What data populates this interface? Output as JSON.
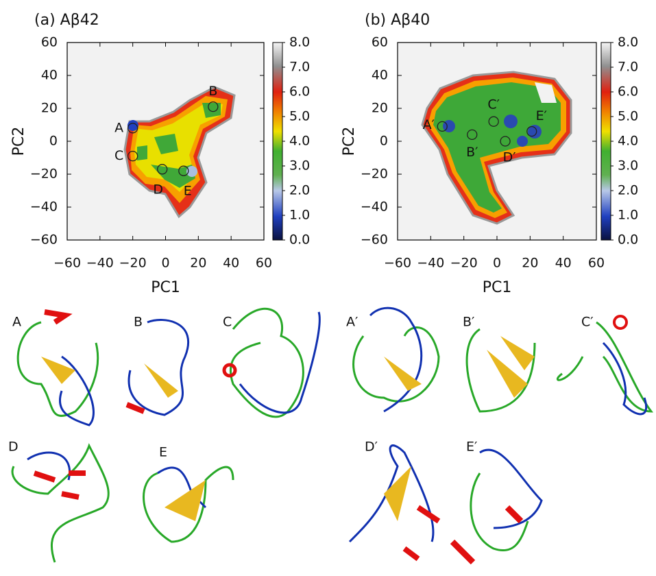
{
  "chart_data": [
    {
      "type": "heatmap",
      "title": "(a) Aβ42",
      "xlabel": "PC1",
      "ylabel": "PC2",
      "xlim": [
        -60,
        60
      ],
      "ylim": [
        -60,
        60
      ],
      "xticks": [
        {
          "value": -60,
          "label": "−60"
        },
        {
          "value": -40,
          "label": "−40"
        },
        {
          "value": -20,
          "label": "−20"
        },
        0,
        20,
        40,
        60
      ],
      "yticks": [
        {
          "value": -60,
          "label": "−60"
        },
        {
          "value": -40,
          "label": "−40"
        },
        {
          "value": -20,
          "label": "−20"
        },
        0,
        20,
        40,
        60
      ],
      "colorbar": {
        "lim": [
          0,
          8
        ],
        "ticks": [
          {
            "value": 0,
            "label": "0.0"
          },
          {
            "value": 1,
            "label": "1.0"
          },
          {
            "value": 2,
            "label": "2.0"
          },
          {
            "value": 3,
            "label": "3.0"
          },
          {
            "value": 4,
            "label": "4.0"
          },
          {
            "value": 5,
            "label": "5.0"
          },
          {
            "value": 6,
            "label": "6.0"
          },
          {
            "value": 7,
            "label": "7.0"
          },
          {
            "value": 8,
            "label": "8.0"
          }
        ]
      },
      "points": [
        {
          "label": "A",
          "x": -20,
          "y": 8
        },
        {
          "label": "B",
          "x": 29,
          "y": 21
        },
        {
          "label": "C",
          "x": -20,
          "y": -9
        },
        {
          "label": "D",
          "x": -2,
          "y": -17
        },
        {
          "label": "E",
          "x": 11,
          "y": -18
        }
      ]
    },
    {
      "type": "heatmap",
      "title": "(b) Aβ40",
      "xlabel": "PC1",
      "ylabel": "PC2",
      "xlim": [
        -60,
        60
      ],
      "ylim": [
        -60,
        60
      ],
      "xticks": [
        {
          "value": -60,
          "label": "−60"
        },
        {
          "value": -40,
          "label": "−40"
        },
        {
          "value": -20,
          "label": "−20"
        },
        0,
        20,
        40,
        60
      ],
      "yticks": [
        {
          "value": -60,
          "label": "−60"
        },
        {
          "value": -40,
          "label": "−40"
        },
        {
          "value": -20,
          "label": "−20"
        },
        0,
        20,
        40,
        60
      ],
      "colorbar": {
        "lim": [
          0,
          8
        ],
        "ticks": [
          {
            "value": 0,
            "label": "0.0"
          },
          {
            "value": 1,
            "label": "1.0"
          },
          {
            "value": 2,
            "label": "2.0"
          },
          {
            "value": 3,
            "label": "3.0"
          },
          {
            "value": 4,
            "label": "4.0"
          },
          {
            "value": 5,
            "label": "5.0"
          },
          {
            "value": 6,
            "label": "6.0"
          },
          {
            "value": 7,
            "label": "7.0"
          },
          {
            "value": 8,
            "label": "8.0"
          }
        ]
      },
      "points": [
        {
          "label": "A′",
          "x": -33,
          "y": 9
        },
        {
          "label": "B′",
          "x": -15,
          "y": 4
        },
        {
          "label": "C′",
          "x": -2,
          "y": 12
        },
        {
          "label": "D′",
          "x": 5,
          "y": 0
        },
        {
          "label": "E′",
          "x": 21,
          "y": 6
        }
      ]
    }
  ],
  "structures": {
    "labels": [
      "A",
      "B",
      "C",
      "A′",
      "B′",
      "C′",
      "D",
      "E",
      "D′",
      "E′"
    ]
  }
}
